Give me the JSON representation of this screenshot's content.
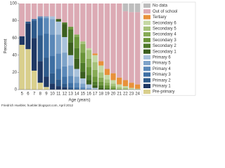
{
  "chart_data": {
    "type": "stacked_bar",
    "y_label": "Percent",
    "x_label": "Age (years)",
    "footer": "Friedrich Huebler, huebler.blogspot.com, April 2012",
    "categories": [
      "5",
      "6",
      "7",
      "8",
      "9",
      "10",
      "11",
      "12",
      "13",
      "14",
      "15",
      "16",
      "17",
      "18",
      "19",
      "20",
      "21",
      "22",
      "23",
      "24"
    ],
    "ylim": [
      0,
      100
    ],
    "yticks": [
      0,
      20,
      40,
      60,
      80,
      100
    ],
    "legend": "right",
    "series": [
      {
        "name": "Pre-primary",
        "color": "#d9cf8c",
        "values": [
          52,
          47,
          22,
          8,
          3,
          0,
          0,
          0,
          0,
          0,
          0,
          0,
          0,
          0,
          0,
          0,
          0,
          0,
          0,
          0
        ]
      },
      {
        "name": "Primary 1",
        "color": "#1f3864",
        "values": [
          10,
          30,
          38,
          25,
          12,
          7,
          4,
          3,
          0,
          0,
          0,
          0,
          0,
          0,
          0,
          0,
          0,
          0,
          0,
          0
        ]
      },
      {
        "name": "Primary 2",
        "color": "#2e5a8a",
        "values": [
          0,
          2,
          20,
          30,
          22,
          12,
          8,
          4,
          3,
          0,
          0,
          0,
          0,
          0,
          0,
          0,
          0,
          0,
          0,
          0
        ]
      },
      {
        "name": "Primary 3",
        "color": "#3e6fa3",
        "values": [
          0,
          0,
          2,
          20,
          28,
          20,
          12,
          8,
          5,
          3,
          0,
          0,
          0,
          0,
          0,
          0,
          0,
          0,
          0,
          0
        ]
      },
      {
        "name": "Primary 4",
        "color": "#5a88b8",
        "values": [
          0,
          0,
          0,
          2,
          18,
          25,
          18,
          12,
          8,
          5,
          3,
          0,
          0,
          0,
          0,
          0,
          0,
          0,
          0,
          0
        ]
      },
      {
        "name": "Primary 5",
        "color": "#7ea3c9",
        "values": [
          0,
          0,
          0,
          0,
          2,
          18,
          22,
          16,
          12,
          7,
          4,
          2,
          0,
          0,
          0,
          0,
          0,
          0,
          0,
          0
        ]
      },
      {
        "name": "Primary 6",
        "color": "#a9c2dc",
        "values": [
          0,
          0,
          0,
          0,
          0,
          3,
          15,
          18,
          12,
          9,
          6,
          4,
          2,
          0,
          0,
          0,
          0,
          0,
          0,
          0
        ]
      },
      {
        "name": "Secondary 1",
        "color": "#3b5e1f",
        "values": [
          0,
          0,
          0,
          0,
          0,
          0,
          3,
          15,
          15,
          12,
          8,
          5,
          3,
          2,
          0,
          0,
          0,
          0,
          0,
          0
        ]
      },
      {
        "name": "Secondary 2",
        "color": "#4f7a2a",
        "values": [
          0,
          0,
          0,
          0,
          0,
          0,
          0,
          2,
          15,
          12,
          10,
          6,
          4,
          3,
          2,
          0,
          0,
          0,
          0,
          0
        ]
      },
      {
        "name": "Secondary 3",
        "color": "#6a9439",
        "values": [
          0,
          0,
          0,
          0,
          0,
          0,
          0,
          0,
          3,
          13,
          12,
          9,
          6,
          4,
          3,
          2,
          0,
          0,
          0,
          0
        ]
      },
      {
        "name": "Secondary 4",
        "color": "#86aa55",
        "values": [
          0,
          0,
          0,
          0,
          0,
          0,
          0,
          0,
          0,
          3,
          10,
          10,
          8,
          5,
          3,
          2,
          1,
          0,
          0,
          0
        ]
      },
      {
        "name": "Secondary 5",
        "color": "#a6c27a",
        "values": [
          0,
          0,
          0,
          0,
          0,
          0,
          0,
          0,
          0,
          0,
          3,
          10,
          9,
          6,
          4,
          3,
          2,
          2,
          0,
          0
        ]
      },
      {
        "name": "Secondary 6",
        "color": "#c5d8a4",
        "values": [
          0,
          0,
          0,
          0,
          0,
          0,
          0,
          0,
          0,
          0,
          0,
          2,
          8,
          8,
          5,
          4,
          3,
          2,
          2,
          1
        ]
      },
      {
        "name": "Tertiary",
        "color": "#e8913a",
        "values": [
          0,
          0,
          0,
          0,
          0,
          0,
          0,
          0,
          0,
          0,
          0,
          0,
          2,
          5,
          7,
          8,
          8,
          7,
          6,
          5
        ]
      },
      {
        "name": "Out of school",
        "color": "#dcaab4",
        "values": [
          38,
          21,
          18,
          15,
          15,
          15,
          18,
          22,
          27,
          36,
          44,
          52,
          58,
          67,
          76,
          81,
          86,
          80,
          82,
          84
        ]
      },
      {
        "name": "No data",
        "color": "#bdbdbd",
        "values": [
          0,
          0,
          0,
          0,
          0,
          0,
          0,
          0,
          0,
          0,
          0,
          0,
          0,
          0,
          0,
          0,
          0,
          9,
          10,
          10
        ]
      }
    ]
  }
}
